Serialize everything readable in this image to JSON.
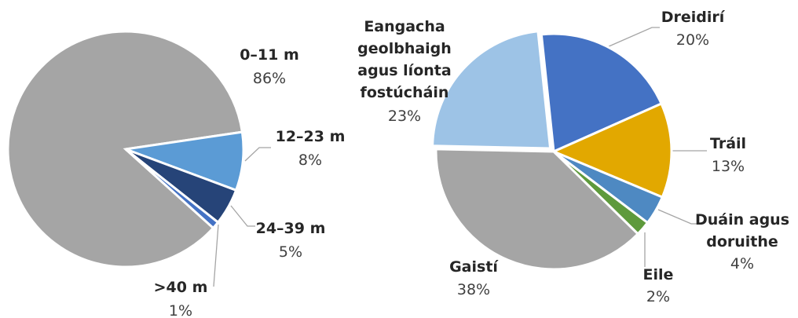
{
  "chart_data": [
    {
      "type": "pie",
      "categories": [
        "0–11 m",
        "12–23 m",
        "24–39 m",
        ">40 m"
      ],
      "values": [
        86,
        8,
        5,
        1
      ],
      "value_labels": [
        "86%",
        "8%",
        "5%",
        "1%"
      ],
      "colors": [
        "#a5a5a5",
        "#5b9bd5",
        "#264478",
        "#4472c4"
      ]
    },
    {
      "type": "pie",
      "categories": [
        "Dreidirí",
        "Tráil",
        "Duáin agus doruithe",
        "Eile",
        "Gaistí",
        "Eangacha geolbhaigh agus líonta fostúcháin"
      ],
      "values": [
        20,
        13,
        4,
        2,
        38,
        23
      ],
      "value_labels": [
        "20%",
        "13%",
        "4%",
        "2%",
        "38%",
        "23%"
      ],
      "colors": [
        "#4472c4",
        "#e2a800",
        "#4e89c2",
        "#5e9a3c",
        "#a5a5a5",
        "#9dc3e6"
      ]
    }
  ]
}
